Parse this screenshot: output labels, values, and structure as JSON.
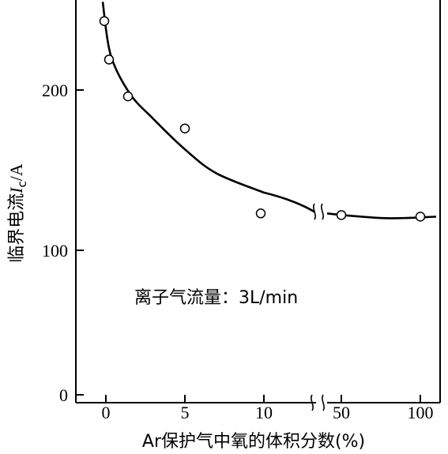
{
  "chart_data": {
    "type": "scatter",
    "xlabel": "Ar保护气中氧的体积分数(%)",
    "ylabel_prefix": "临界电流",
    "ylabel_symbol": "I",
    "ylabel_subscript": "c",
    "ylabel_unit": "/A",
    "annotation": "离子气流量：3L/min",
    "x_ticks": [
      "0",
      "5",
      "10",
      "50",
      "100"
    ],
    "y_ticks": [
      "0",
      "100",
      "200"
    ],
    "x_axis_break": true,
    "ylim": [
      0,
      250
    ],
    "points": [
      {
        "x": -0.1,
        "y": 243
      },
      {
        "x": 0.2,
        "y": 219
      },
      {
        "x": 1.4,
        "y": 196
      },
      {
        "x": 5,
        "y": 176
      },
      {
        "x": 9.8,
        "y": 123
      },
      {
        "x": 50,
        "y": 122
      },
      {
        "x": 100,
        "y": 121
      }
    ],
    "fit_curve": [
      {
        "x": -0.2,
        "y": 255
      },
      {
        "x": 0.3,
        "y": 222
      },
      {
        "x": 1.5,
        "y": 198
      },
      {
        "x": 3,
        "y": 182
      },
      {
        "x": 5,
        "y": 163
      },
      {
        "x": 7,
        "y": 148
      },
      {
        "x": 10,
        "y": 136
      },
      {
        "x": 50,
        "y": 122
      },
      {
        "x": 80,
        "y": 120
      },
      {
        "x": 110,
        "y": 121
      }
    ]
  }
}
